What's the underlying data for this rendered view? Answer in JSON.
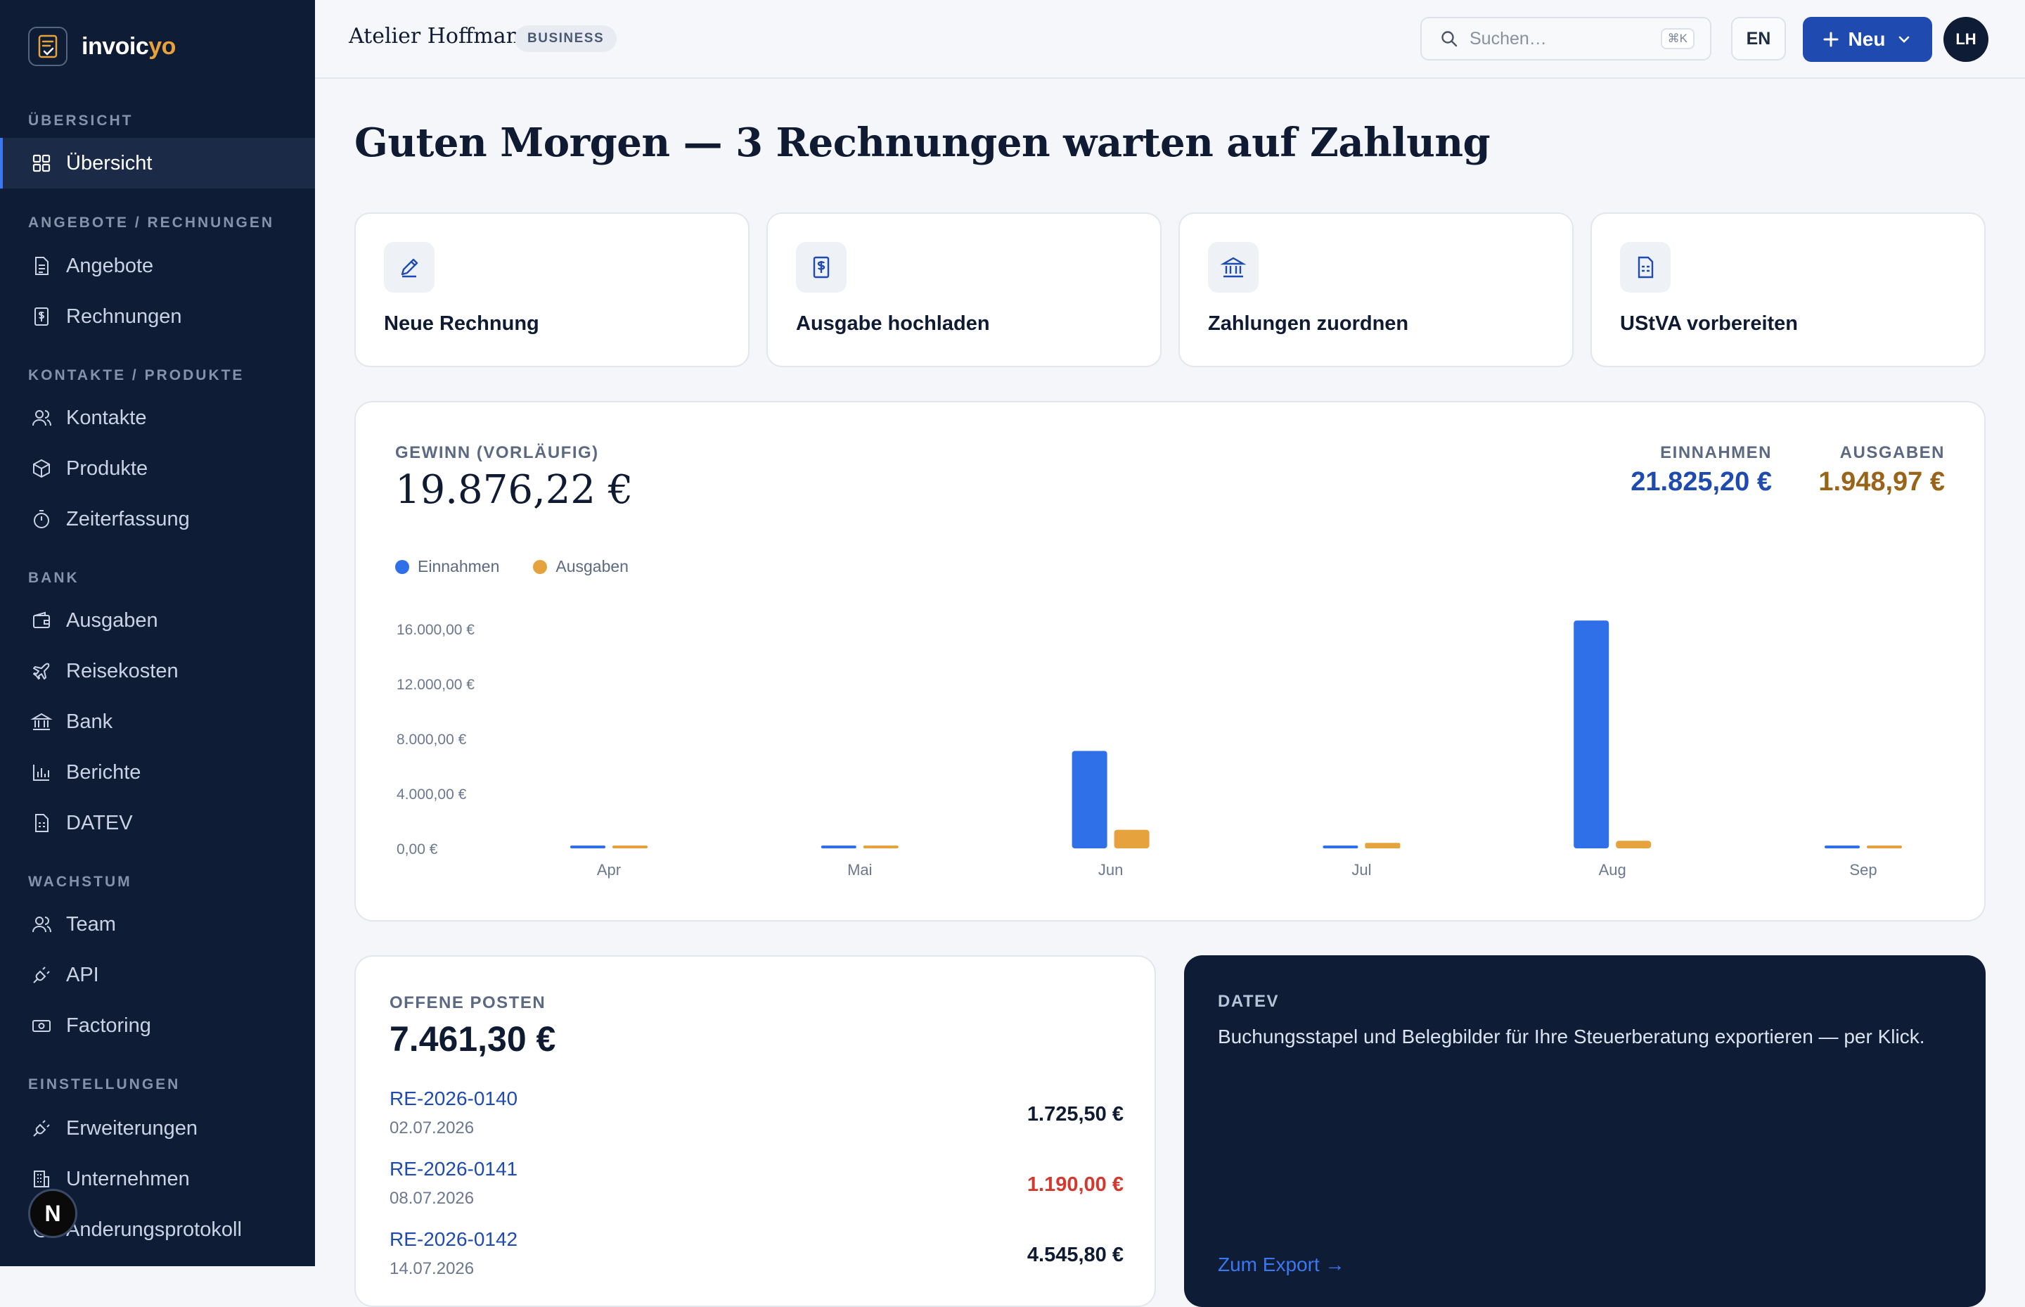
{
  "app": {
    "logo_main": "invoic",
    "logo_accent": "yo"
  },
  "sidebar": {
    "sections": [
      "ÜBERSICHT",
      "ANGEBOTE / RECHNUNGEN",
      "KONTAKTE / PRODUKTE",
      "BANK",
      "WACHSTUM",
      "EINSTELLUNGEN"
    ],
    "items": [
      {
        "label": "Übersicht",
        "icon": "grid-icon",
        "active": true
      },
      {
        "label": "Angebote",
        "icon": "document-icon"
      },
      {
        "label": "Rechnungen",
        "icon": "invoice-icon"
      },
      {
        "label": "Kontakte",
        "icon": "users-icon"
      },
      {
        "label": "Produkte",
        "icon": "box-icon"
      },
      {
        "label": "Zeiterfassung",
        "icon": "stopwatch-icon"
      },
      {
        "label": "Ausgaben",
        "icon": "wallet-icon"
      },
      {
        "label": "Reisekosten",
        "icon": "plane-icon"
      },
      {
        "label": "Bank",
        "icon": "bank-icon"
      },
      {
        "label": "Berichte",
        "icon": "bar-chart-icon"
      },
      {
        "label": "DATEV",
        "icon": "file-table-icon"
      },
      {
        "label": "Team",
        "icon": "users-icon"
      },
      {
        "label": "API",
        "icon": "plug-icon"
      },
      {
        "label": "Factoring",
        "icon": "cash-icon"
      },
      {
        "label": "Erweiterungen",
        "icon": "plug-icon"
      },
      {
        "label": "Unternehmen",
        "icon": "building-icon"
      },
      {
        "label": "Änderungsprotokoll",
        "icon": "history-icon"
      }
    ],
    "dev_badge": "N"
  },
  "header": {
    "company": "Atelier Hoffmann",
    "plan": "BUSINESS",
    "search_placeholder": "Suchen…",
    "search_shortcut": "⌘K",
    "language": "EN",
    "new_button": "Neu",
    "avatar_initials": "LH"
  },
  "greeting": "Guten Morgen — 3 Rechnungen warten auf Zahlung",
  "quick_actions": [
    {
      "label": "Neue Rechnung",
      "icon": "pen-icon"
    },
    {
      "label": "Ausgabe hochladen",
      "icon": "receipt-upload-icon"
    },
    {
      "label": "Zahlungen zuordnen",
      "icon": "bank-icon"
    },
    {
      "label": "UStVA vorbereiten",
      "icon": "tax-form-icon"
    }
  ],
  "summary": {
    "profit_label": "GEWINN (VORLÄUFIG)",
    "profit_value": "19.876,22 €",
    "income_label": "EINNAHMEN",
    "income_value": "21.825,20 €",
    "expense_label": "AUSGABEN",
    "expense_value": "1.948,97 €"
  },
  "colors": {
    "income": "#2f6fe8",
    "expense": "#e6a23c",
    "accent": "#1f4bb0",
    "sidebar": "#0e1c36",
    "overdue": "#d23a2f"
  },
  "chart_data": {
    "type": "bar",
    "categories": [
      "Apr",
      "Mai",
      "Jun",
      "Jul",
      "Aug",
      "Sep"
    ],
    "series": [
      {
        "name": "Einnahmen",
        "values": [
          0,
          0,
          7100,
          0,
          16600,
          0
        ]
      },
      {
        "name": "Ausgaben",
        "values": [
          0,
          0,
          1350,
          400,
          550,
          0
        ]
      }
    ],
    "yticks": [
      "0,00 €",
      "4.000,00 €",
      "8.000,00 €",
      "12.000,00 €",
      "16.000,00 €"
    ],
    "ylim": [
      0,
      16000
    ],
    "legend": "top-left",
    "grid": false
  },
  "open_items": {
    "label": "OFFENE POSTEN",
    "total": "7.461,30 €",
    "rows": [
      {
        "number": "RE-2026-0140",
        "date": "02.07.2026",
        "amount": "1.725,50 €",
        "overdue": false
      },
      {
        "number": "RE-2026-0141",
        "date": "08.07.2026",
        "amount": "1.190,00 €",
        "overdue": true
      },
      {
        "number": "RE-2026-0142",
        "date": "14.07.2026",
        "amount": "4.545,80 €",
        "overdue": false
      }
    ]
  },
  "datev": {
    "title": "DATEV",
    "description": "Buchungsstapel und Belegbilder für Ihre Steuerberatung exportieren — per Klick.",
    "link": "Zum Export →"
  }
}
